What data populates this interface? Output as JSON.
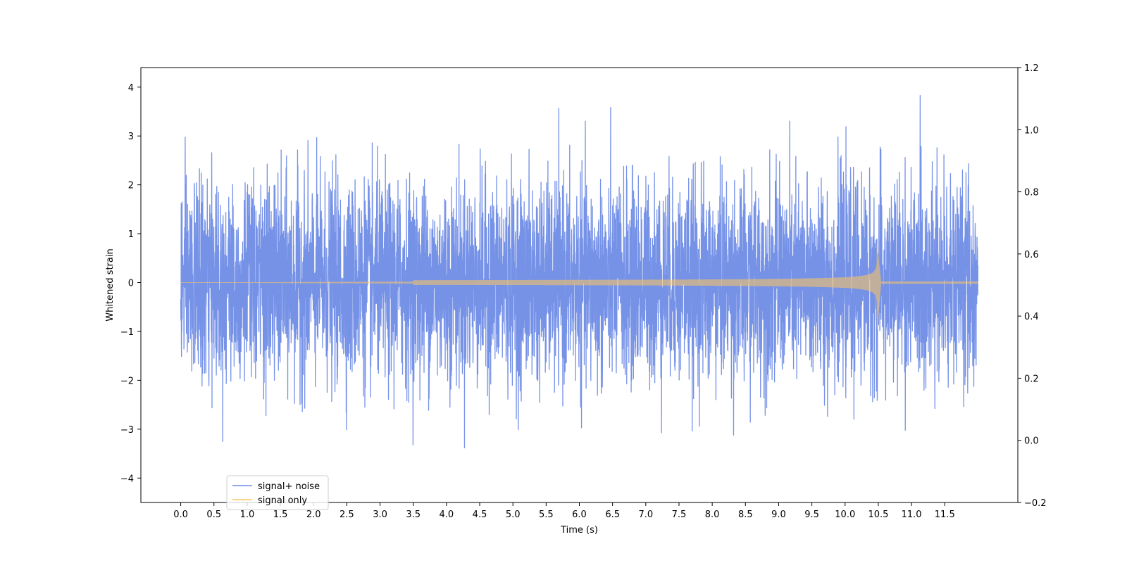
{
  "chart_data": {
    "type": "line",
    "title": "",
    "xlabel": "Time (s)",
    "ylabel": "Whitened strain",
    "xlim": [
      -0.6,
      12.6
    ],
    "ylim": [
      -4.5,
      4.4
    ],
    "y2lim": [
      -0.2,
      1.2
    ],
    "x_ticks": [
      "0.0",
      "0.5",
      "1.0",
      "1.5",
      "2.0",
      "2.5",
      "3.0",
      "3.5",
      "4.0",
      "4.5",
      "5.0",
      "5.5",
      "6.0",
      "6.5",
      "7.0",
      "7.5",
      "8.0",
      "8.5",
      "9.0",
      "9.5",
      "10.0",
      "10.5",
      "11.0",
      "11.5"
    ],
    "y_ticks": [
      "−4",
      "−3",
      "−2",
      "−1",
      "0",
      "1",
      "2",
      "3",
      "4"
    ],
    "y2_ticks": [
      "−0.2",
      "0.0",
      "0.2",
      "0.4",
      "0.6",
      "0.8",
      "1.0",
      "1.2"
    ],
    "grid": false,
    "legend_position": "lower-left",
    "series": [
      {
        "name": "signal+ noise",
        "color": "#6f8ce6",
        "t_range": [
          0.0,
          12.0
        ],
        "noise_sigma": 1.0,
        "peak_max": 4.0,
        "peak_min": -4.1
      },
      {
        "name": "signal only",
        "color": "#ffc65c",
        "t_range": [
          0.0,
          12.0
        ],
        "chirp_start": 3.5,
        "merger_time": 10.48,
        "peak_max": 0.85,
        "peak_min": -1.0
      }
    ]
  }
}
